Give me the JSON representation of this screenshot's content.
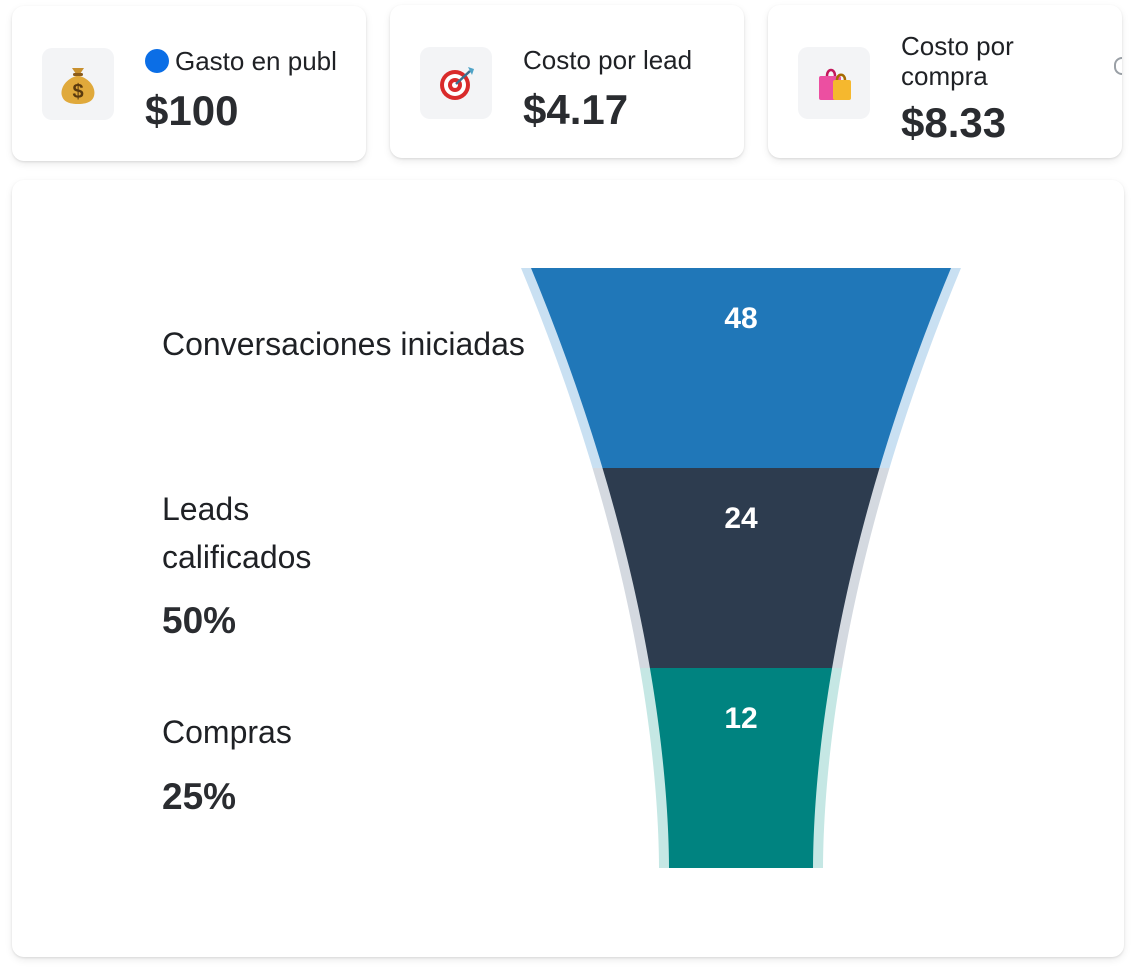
{
  "kpis": [
    {
      "label": "Gasto en publicidad",
      "value": "$100",
      "icon": "money-bag-icon",
      "dot_color": "#0b6ee6"
    },
    {
      "label": "Costo por lead",
      "value": "$4.17",
      "icon": "target-icon"
    },
    {
      "label": "Costo por compra",
      "value": "$8.33",
      "icon": "shopping-bags-icon"
    }
  ],
  "funnel": {
    "stages": [
      {
        "label": "Conversaciones iniciadas",
        "value": 48,
        "pct": "",
        "color": "#2077b8",
        "glow": "#c9e0f2"
      },
      {
        "label": "Leads calificados",
        "value": 24,
        "pct": "50%",
        "color": "#2d3c4f",
        "glow": "#d4d9e0"
      },
      {
        "label": "Compras",
        "value": 12,
        "pct": "25%",
        "color": "#008380",
        "glow": "#c5e7e4"
      }
    ]
  },
  "chart_data": {
    "type": "funnel",
    "categories": [
      "Conversaciones iniciadas",
      "Leads calificados",
      "Compras"
    ],
    "values": [
      48,
      24,
      12
    ],
    "percentages": [
      "",
      "50%",
      "25%"
    ]
  }
}
